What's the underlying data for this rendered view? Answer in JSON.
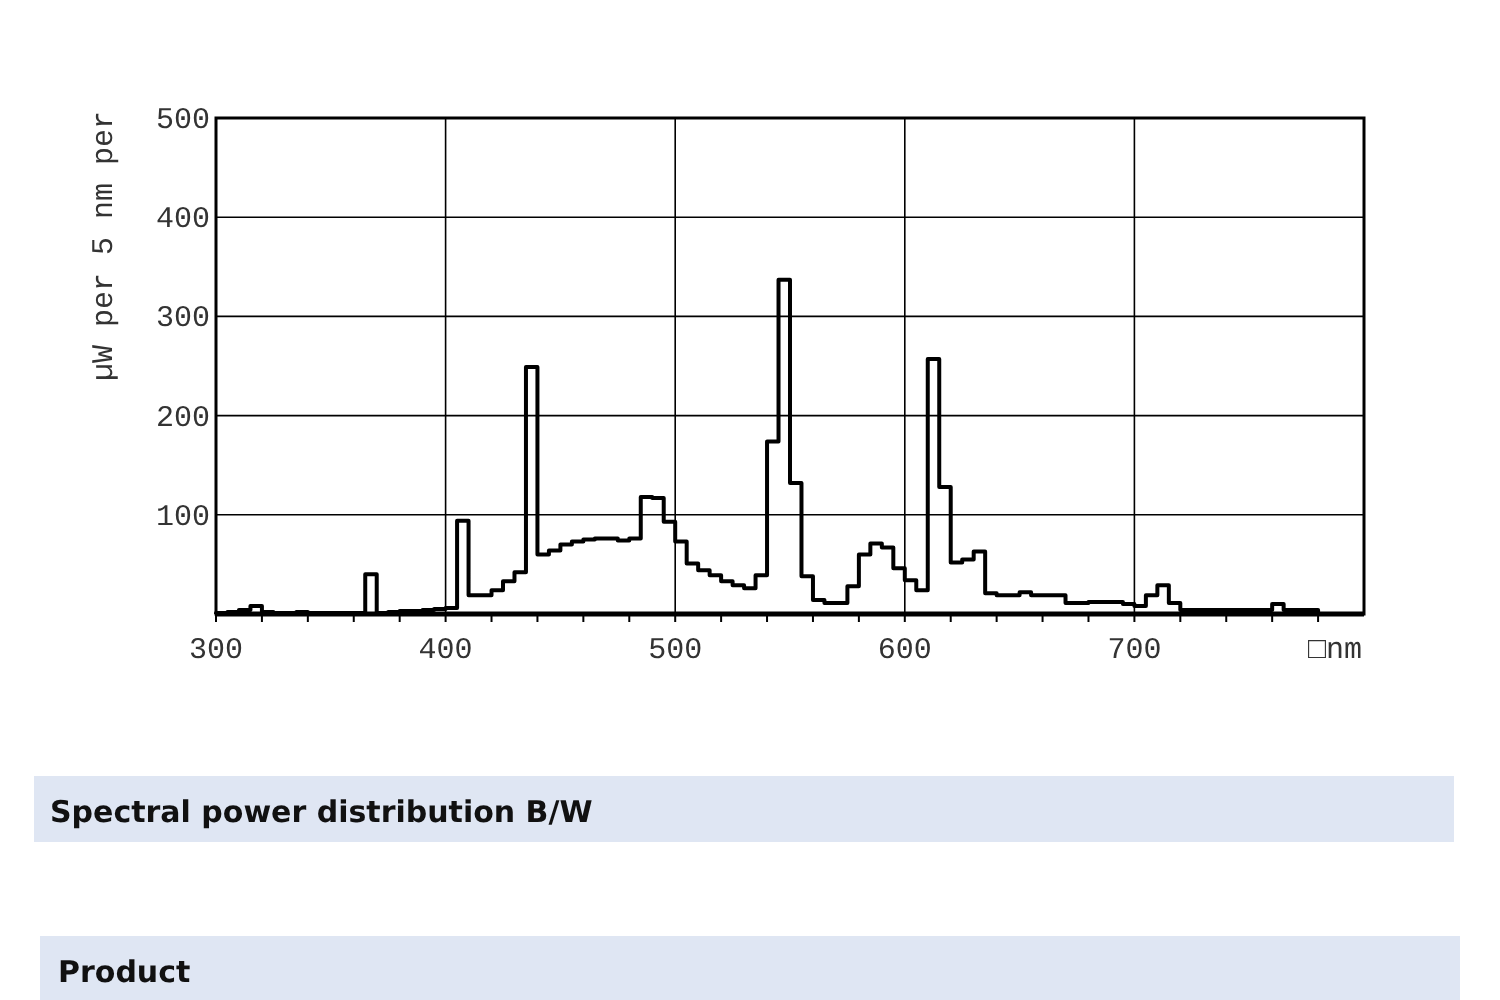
{
  "chart_data": {
    "type": "histogram",
    "title": "Spectral power distribution B/W",
    "annotations": [
      "Product"
    ],
    "ylabel": "µW per 5 nm per",
    "xlabel": "□nm",
    "color": "#000000",
    "grid": true,
    "bins": [
      300,
      305,
      310,
      315,
      320,
      325,
      330,
      335,
      340,
      345,
      350,
      355,
      360,
      365,
      370,
      375,
      380,
      385,
      390,
      395,
      400,
      405,
      410,
      415,
      420,
      425,
      430,
      435,
      440,
      445,
      450,
      455,
      460,
      465,
      470,
      475,
      480,
      485,
      490,
      495,
      500,
      505,
      510,
      515,
      520,
      525,
      530,
      535,
      540,
      545,
      550,
      555,
      560,
      565,
      570,
      575,
      580,
      585,
      590,
      595,
      600,
      605,
      610,
      615,
      620,
      625,
      630,
      635,
      640,
      645,
      650,
      655,
      660,
      665,
      670,
      675,
      680,
      685,
      690,
      695,
      700,
      705,
      710,
      715,
      720,
      725,
      730,
      735,
      740,
      745,
      750,
      755,
      760,
      765,
      770,
      775,
      780
    ],
    "values": [
      1,
      2,
      4,
      8,
      2,
      1,
      1,
      2,
      1,
      1,
      1,
      1,
      1,
      40,
      1,
      2,
      3,
      3,
      4,
      5,
      6,
      94,
      19,
      19,
      24,
      33,
      42,
      249,
      60,
      64,
      70,
      73,
      75,
      76,
      76,
      74,
      76,
      118,
      117,
      93,
      73,
      51,
      44,
      39,
      33,
      29,
      26,
      39,
      174,
      337,
      132,
      38,
      14,
      11,
      11,
      28,
      60,
      71,
      67,
      46,
      34,
      24,
      257,
      128,
      52,
      55,
      63,
      21,
      19,
      19,
      22,
      19,
      19,
      19,
      11,
      11,
      12,
      12,
      12,
      10,
      8,
      19,
      29,
      11,
      4,
      4,
      4,
      4,
      4,
      4,
      4,
      4,
      10,
      4,
      4,
      4
    ],
    "xlim": [
      300,
      800
    ],
    "ylim": [
      0,
      500
    ],
    "xticks": [
      300,
      {
        "value": 320,
        "label": null
      },
      {
        "value": 340,
        "label": null
      },
      {
        "value": 360,
        "label": null
      },
      {
        "value": 380,
        "label": null
      },
      400,
      {
        "value": 420,
        "label": null
      },
      {
        "value": 440,
        "label": null
      },
      {
        "value": 460,
        "label": null
      },
      {
        "value": 480,
        "label": null
      },
      500,
      {
        "value": 520,
        "label": null
      },
      {
        "value": 540,
        "label": null
      },
      {
        "value": 560,
        "label": null
      },
      {
        "value": 580,
        "label": null
      },
      600,
      {
        "value": 620,
        "label": null
      },
      {
        "value": 640,
        "label": null
      },
      {
        "value": 660,
        "label": null
      },
      {
        "value": 680,
        "label": null
      },
      700,
      {
        "value": 720,
        "label": null
      },
      {
        "value": 740,
        "label": null
      },
      {
        "value": 760,
        "label": null
      },
      {
        "value": 780,
        "label": null
      }
    ],
    "yticks": [
      100,
      200,
      300,
      400,
      500
    ]
  }
}
